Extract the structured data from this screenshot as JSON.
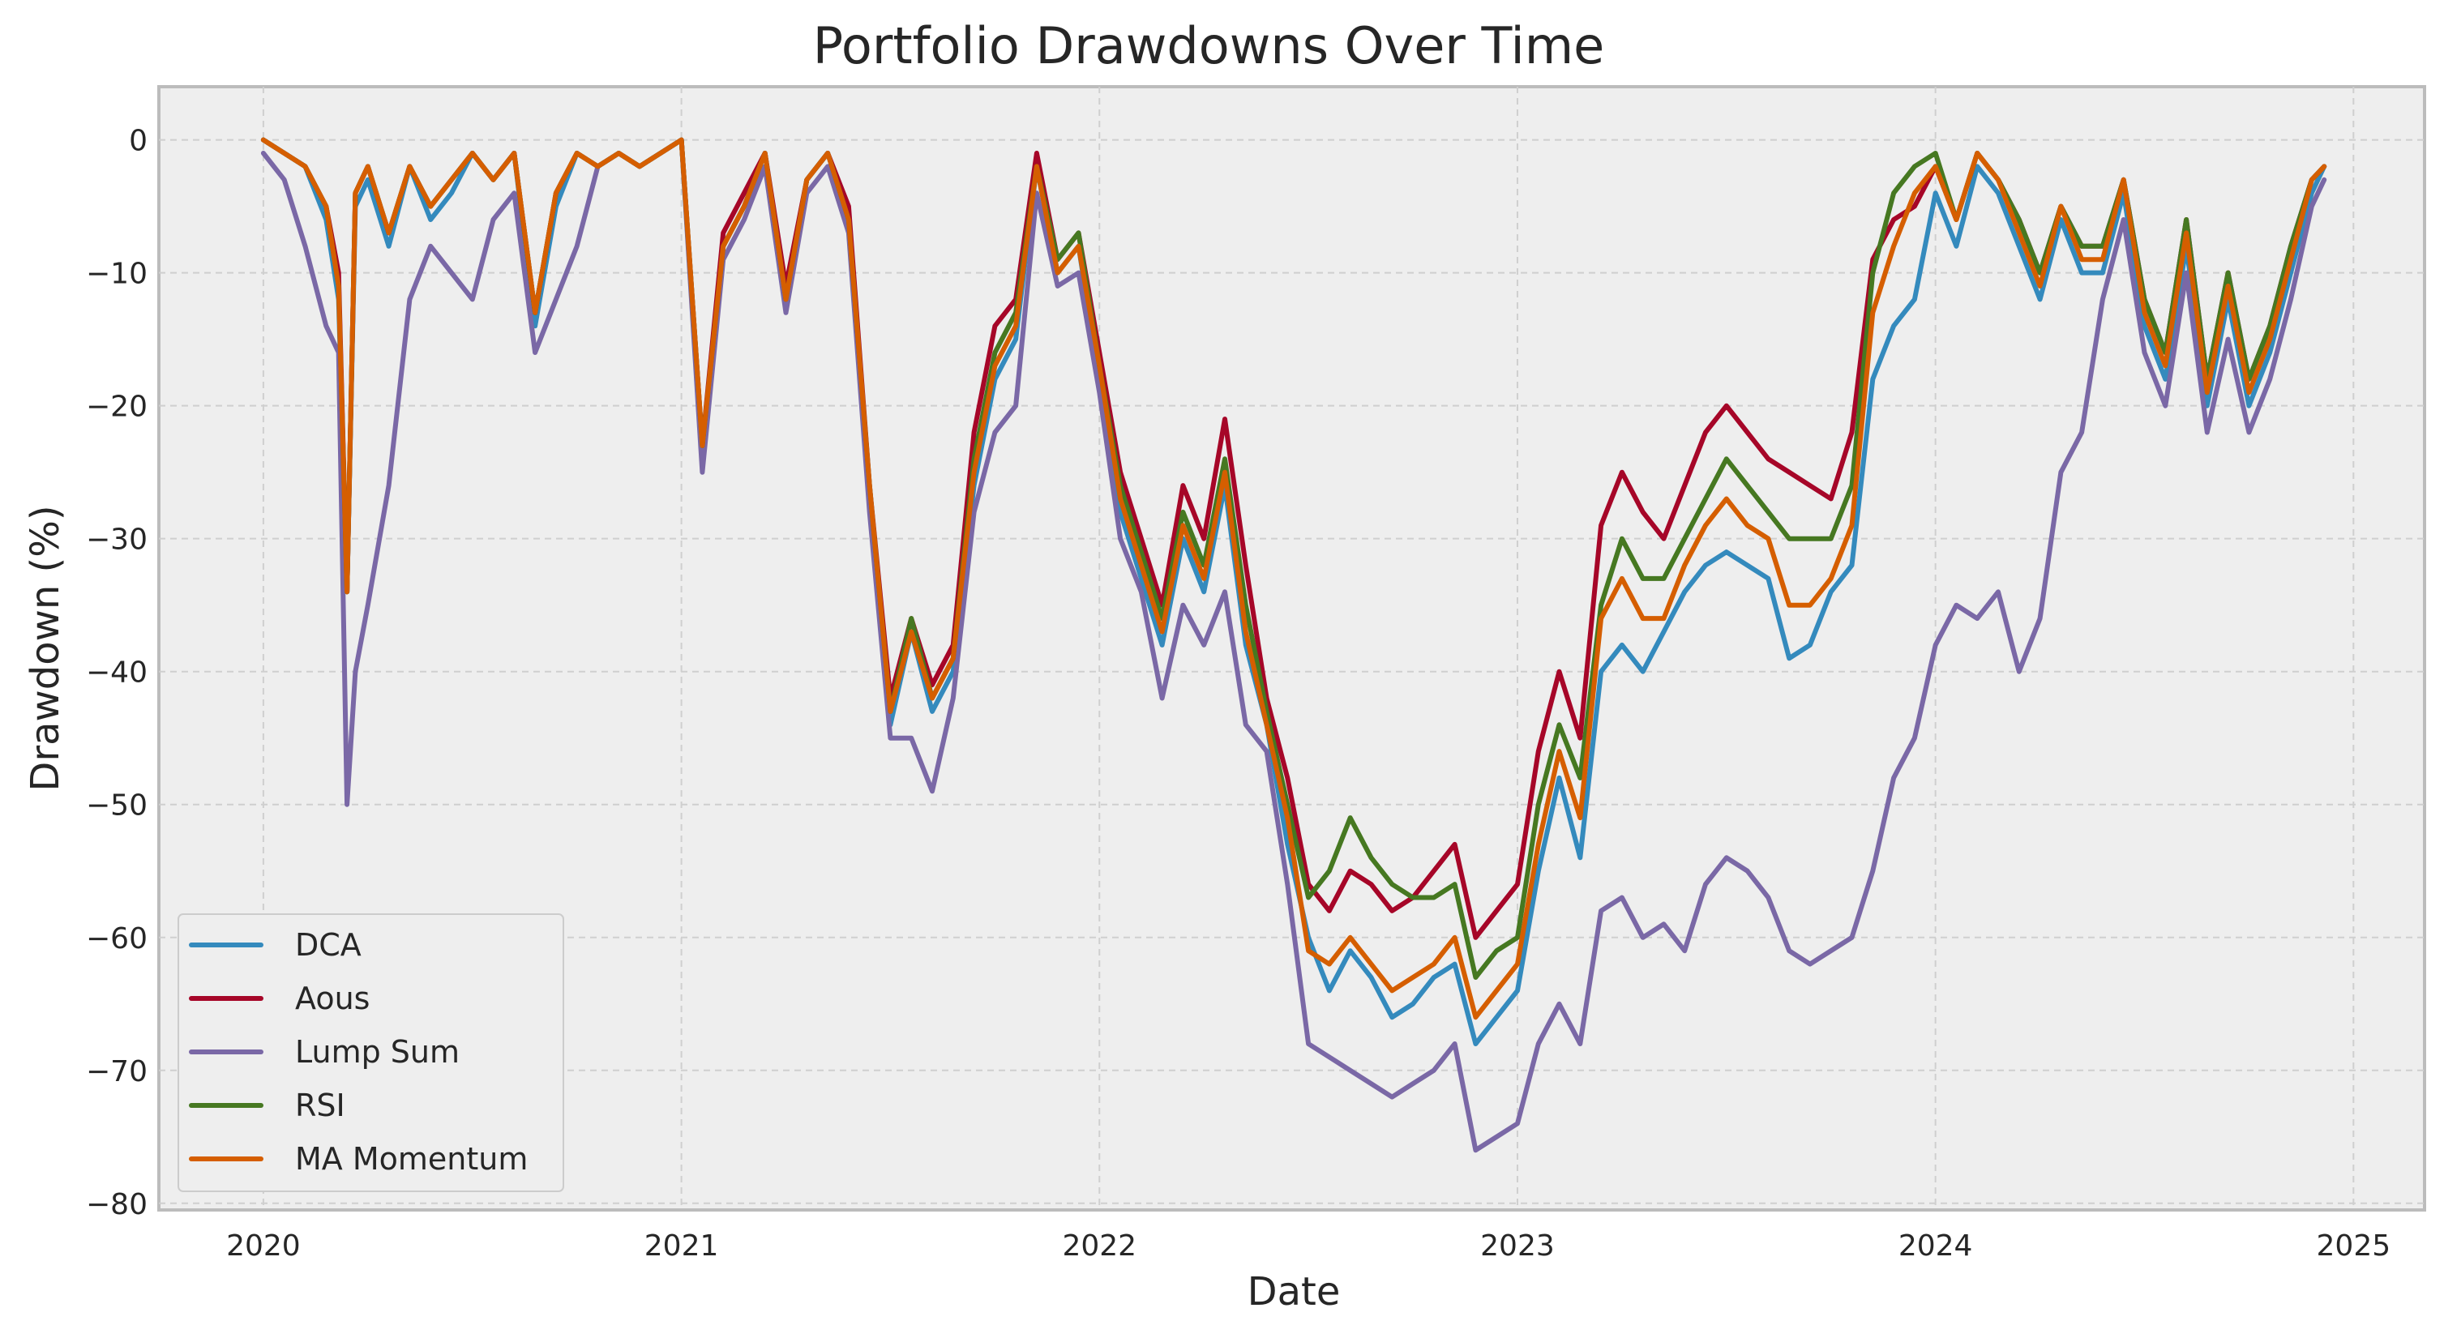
{
  "chart_data": {
    "type": "line",
    "title": "Portfolio Drawdowns Over Time",
    "xlabel": "Date",
    "ylabel": "Drawdown (%)",
    "xlim": [
      2019.75,
      2025.17
    ],
    "ylim": [
      -80.5,
      4
    ],
    "x_ticks": [
      "2020",
      "2021",
      "2022",
      "2023",
      "2024",
      "2025"
    ],
    "y_ticks": [
      "0",
      "−10",
      "−20",
      "−30",
      "−40",
      "−50",
      "−60",
      "−70",
      "−80"
    ],
    "grid": true,
    "legend_position": "lower-left",
    "x": [
      2020.0,
      2020.05,
      2020.1,
      2020.15,
      2020.18,
      2020.2,
      2020.22,
      2020.25,
      2020.3,
      2020.35,
      2020.4,
      2020.45,
      2020.5,
      2020.55,
      2020.6,
      2020.65,
      2020.7,
      2020.75,
      2020.8,
      2020.85,
      2020.9,
      2020.95,
      2021.0,
      2021.05,
      2021.1,
      2021.15,
      2021.2,
      2021.25,
      2021.3,
      2021.35,
      2021.4,
      2021.45,
      2021.5,
      2021.55,
      2021.6,
      2021.65,
      2021.7,
      2021.75,
      2021.8,
      2021.85,
      2021.9,
      2021.95,
      2022.0,
      2022.05,
      2022.1,
      2022.15,
      2022.2,
      2022.25,
      2022.3,
      2022.35,
      2022.4,
      2022.45,
      2022.5,
      2022.55,
      2022.6,
      2022.65,
      2022.7,
      2022.75,
      2022.8,
      2022.85,
      2022.9,
      2022.95,
      2023.0,
      2023.05,
      2023.1,
      2023.15,
      2023.2,
      2023.25,
      2023.3,
      2023.35,
      2023.4,
      2023.45,
      2023.5,
      2023.55,
      2023.6,
      2023.65,
      2023.7,
      2023.75,
      2023.8,
      2023.85,
      2023.9,
      2023.95,
      2024.0,
      2024.05,
      2024.1,
      2024.15,
      2024.2,
      2024.25,
      2024.3,
      2024.35,
      2024.4,
      2024.45,
      2024.5,
      2024.55,
      2024.6,
      2024.65,
      2024.7,
      2024.75,
      2024.8,
      2024.85,
      2024.9,
      2024.93
    ],
    "series": [
      {
        "name": "DCA",
        "color": "#348ABD",
        "values": [
          0,
          -1,
          -2,
          -6,
          -12,
          -34,
          -5,
          -3,
          -8,
          -2,
          -6,
          -4,
          -1,
          -3,
          -1,
          -14,
          -5,
          -1,
          -2,
          -1,
          -2,
          -1,
          0,
          -24,
          -8,
          -5,
          -1,
          -12,
          -3,
          -1,
          -6,
          -27,
          -44,
          -37,
          -43,
          -40,
          -26,
          -18,
          -15,
          -2,
          -10,
          -8,
          -18,
          -28,
          -33,
          -38,
          -30,
          -34,
          -26,
          -38,
          -44,
          -53,
          -60,
          -64,
          -61,
          -63,
          -66,
          -65,
          -63,
          -62,
          -68,
          -66,
          -64,
          -55,
          -48,
          -54,
          -40,
          -38,
          -40,
          -37,
          -34,
          -32,
          -31,
          -32,
          -33,
          -39,
          -38,
          -34,
          -32,
          -18,
          -14,
          -12,
          -4,
          -8,
          -2,
          -4,
          -8,
          -12,
          -6,
          -10,
          -10,
          -4,
          -14,
          -18,
          -8,
          -20,
          -12,
          -20,
          -16,
          -10,
          -4,
          -2
        ]
      },
      {
        "name": "Aous",
        "color": "#A60628",
        "values": [
          0,
          -1,
          -2,
          -5,
          -10,
          -34,
          -4,
          -2,
          -7,
          -2,
          -5,
          -3,
          -1,
          -3,
          -1,
          -13,
          -4,
          -1,
          -2,
          -1,
          -2,
          -1,
          0,
          -23,
          -7,
          -4,
          -1,
          -11,
          -3,
          -1,
          -5,
          -26,
          -42,
          -36,
          -41,
          -38,
          -22,
          -14,
          -12,
          -1,
          -9,
          -7,
          -16,
          -25,
          -30,
          -35,
          -26,
          -30,
          -21,
          -32,
          -42,
          -48,
          -56,
          -58,
          -55,
          -56,
          -58,
          -57,
          -55,
          -53,
          -60,
          -58,
          -56,
          -46,
          -40,
          -45,
          -29,
          -25,
          -28,
          -30,
          -26,
          -22,
          -20,
          -22,
          -24,
          -25,
          -26,
          -27,
          -22,
          -9,
          -6,
          -5,
          -2,
          -6,
          -1,
          -3,
          -6,
          -10,
          -5,
          -8,
          -8,
          -3,
          -12,
          -16,
          -6,
          -18,
          -10,
          -18,
          -14,
          -8,
          -3,
          -2
        ]
      },
      {
        "name": "Lump Sum",
        "color": "#7A68A6",
        "values": [
          -1,
          -3,
          -8,
          -14,
          -16,
          -50,
          -40,
          -35,
          -26,
          -12,
          -8,
          -10,
          -12,
          -6,
          -4,
          -16,
          -12,
          -8,
          -2,
          -1,
          -2,
          -1,
          0,
          -25,
          -9,
          -6,
          -2,
          -13,
          -4,
          -2,
          -7,
          -28,
          -45,
          -45,
          -49,
          -42,
          -28,
          -22,
          -20,
          -4,
          -11,
          -10,
          -19,
          -30,
          -34,
          -42,
          -35,
          -38,
          -34,
          -44,
          -46,
          -56,
          -68,
          -69,
          -70,
          -71,
          -72,
          -71,
          -70,
          -68,
          -76,
          -75,
          -74,
          -68,
          -65,
          -68,
          -58,
          -57,
          -60,
          -59,
          -61,
          -56,
          -54,
          -55,
          -57,
          -61,
          -62,
          -61,
          -60,
          -55,
          -48,
          -45,
          -38,
          -35,
          -36,
          -34,
          -40,
          -36,
          -25,
          -22,
          -12,
          -6,
          -16,
          -20,
          -10,
          -22,
          -15,
          -22,
          -18,
          -12,
          -5,
          -3
        ]
      },
      {
        "name": "RSI",
        "color": "#467821",
        "values": [
          0,
          -1,
          -2,
          -5,
          -11,
          -34,
          -4,
          -2,
          -7,
          -2,
          -5,
          -3,
          -1,
          -3,
          -1,
          -13,
          -4,
          -1,
          -2,
          -1,
          -2,
          -1,
          0,
          -23,
          -8,
          -5,
          -1,
          -12,
          -3,
          -1,
          -6,
          -26,
          -43,
          -36,
          -42,
          -39,
          -24,
          -16,
          -13,
          -2,
          -9,
          -7,
          -17,
          -26,
          -31,
          -36,
          -28,
          -32,
          -24,
          -35,
          -43,
          -50,
          -57,
          -55,
          -51,
          -54,
          -56,
          -57,
          -57,
          -56,
          -63,
          -61,
          -60,
          -50,
          -44,
          -48,
          -35,
          -30,
          -33,
          -33,
          -30,
          -27,
          -24,
          -26,
          -28,
          -30,
          -30,
          -30,
          -26,
          -10,
          -4,
          -2,
          -1,
          -6,
          -1,
          -3,
          -6,
          -10,
          -5,
          -8,
          -8,
          -3,
          -12,
          -16,
          -6,
          -18,
          -10,
          -18,
          -14,
          -8,
          -3,
          -2
        ]
      },
      {
        "name": "MA Momentum",
        "color": "#D55E00",
        "values": [
          0,
          -1,
          -2,
          -5,
          -11,
          -34,
          -4,
          -2,
          -7,
          -2,
          -5,
          -3,
          -1,
          -3,
          -1,
          -13,
          -4,
          -1,
          -2,
          -1,
          -2,
          -1,
          0,
          -23,
          -8,
          -5,
          -1,
          -12,
          -3,
          -1,
          -6,
          -26,
          -43,
          -37,
          -42,
          -39,
          -25,
          -17,
          -14,
          -2,
          -10,
          -8,
          -17,
          -27,
          -32,
          -37,
          -29,
          -33,
          -25,
          -37,
          -44,
          -51,
          -61,
          -62,
          -60,
          -62,
          -64,
          -63,
          -62,
          -60,
          -66,
          -64,
          -62,
          -53,
          -46,
          -51,
          -36,
          -33,
          -36,
          -36,
          -32,
          -29,
          -27,
          -29,
          -30,
          -35,
          -35,
          -33,
          -29,
          -13,
          -8,
          -4,
          -2,
          -6,
          -1,
          -3,
          -7,
          -11,
          -5,
          -9,
          -9,
          -3,
          -13,
          -17,
          -7,
          -19,
          -11,
          -19,
          -15,
          -9,
          -3,
          -2
        ]
      }
    ]
  }
}
